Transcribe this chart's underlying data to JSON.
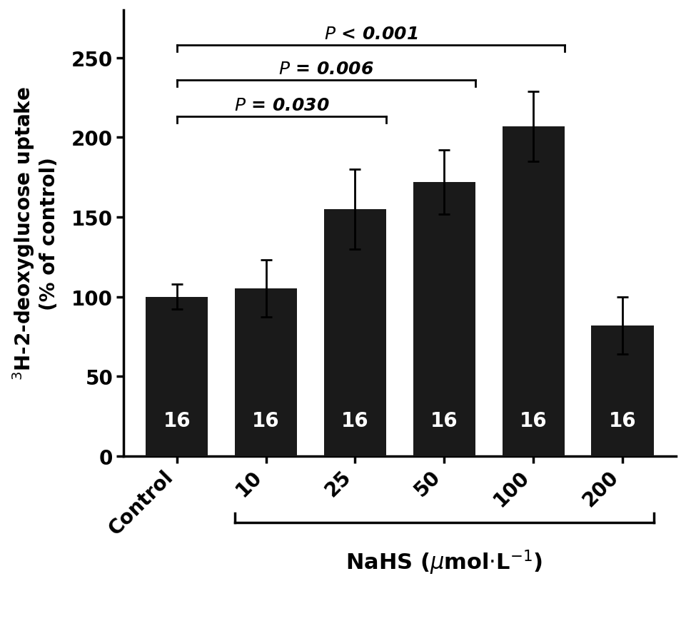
{
  "categories": [
    "Control",
    "10",
    "25",
    "50",
    "100",
    "200"
  ],
  "values": [
    100,
    105,
    155,
    172,
    207,
    82
  ],
  "errors": [
    8,
    18,
    25,
    20,
    22,
    18
  ],
  "bar_color": "#1a1a1a",
  "bar_labels": [
    "16",
    "16",
    "16",
    "16",
    "16",
    "16"
  ],
  "ylim": [
    0,
    280
  ],
  "yticks": [
    0,
    50,
    100,
    150,
    200,
    250
  ],
  "figsize": [
    9.62,
    8.78
  ],
  "dpi": 100
}
